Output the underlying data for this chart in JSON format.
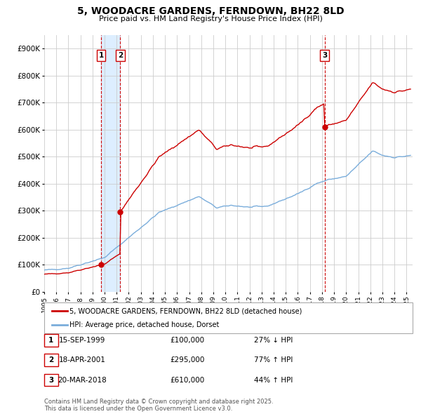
{
  "title": "5, WOODACRE GARDENS, FERNDOWN, BH22 8LD",
  "subtitle": "Price paid vs. HM Land Registry's House Price Index (HPI)",
  "legend_line1": "5, WOODACRE GARDENS, FERNDOWN, BH22 8LD (detached house)",
  "legend_line2": "HPI: Average price, detached house, Dorset",
  "footnote": "Contains HM Land Registry data © Crown copyright and database right 2025.\nThis data is licensed under the Open Government Licence v3.0.",
  "transaction_color": "#cc0000",
  "hpi_color": "#7aaddb",
  "sale_marker_color": "#cc0000",
  "background_color": "#ffffff",
  "plot_bg_color": "#ffffff",
  "grid_color": "#cccccc",
  "vline_color": "#cc0000",
  "vband_color": "#ddeeff",
  "transactions": [
    {
      "date": 1999.708,
      "price": 100000,
      "label": "1"
    },
    {
      "date": 2001.297,
      "price": 295000,
      "label": "2"
    },
    {
      "date": 2018.219,
      "price": 610000,
      "label": "3"
    }
  ],
  "table_rows": [
    {
      "num": "1",
      "date": "15-SEP-1999",
      "price": "£100,000",
      "hpi": "27% ↓ HPI"
    },
    {
      "num": "2",
      "date": "18-APR-2001",
      "price": "£295,000",
      "hpi": "77% ↑ HPI"
    },
    {
      "num": "3",
      "date": "20-MAR-2018",
      "price": "£610,000",
      "hpi": "44% ↑ HPI"
    }
  ],
  "ylim": [
    0,
    950000
  ],
  "xlim_left": 1995.0,
  "xlim_right": 2025.5,
  "yticks": [
    0,
    100000,
    200000,
    300000,
    400000,
    500000,
    600000,
    700000,
    800000,
    900000
  ],
  "ytick_labels": [
    "£0",
    "£100K",
    "£200K",
    "£300K",
    "£400K",
    "£500K",
    "£600K",
    "£700K",
    "£800K",
    "£900K"
  ],
  "xticks": [
    1995,
    1996,
    1997,
    1998,
    1999,
    2000,
    2001,
    2002,
    2003,
    2004,
    2005,
    2006,
    2007,
    2008,
    2009,
    2010,
    2011,
    2012,
    2013,
    2014,
    2015,
    2016,
    2017,
    2018,
    2019,
    2020,
    2021,
    2022,
    2023,
    2024,
    2025
  ]
}
